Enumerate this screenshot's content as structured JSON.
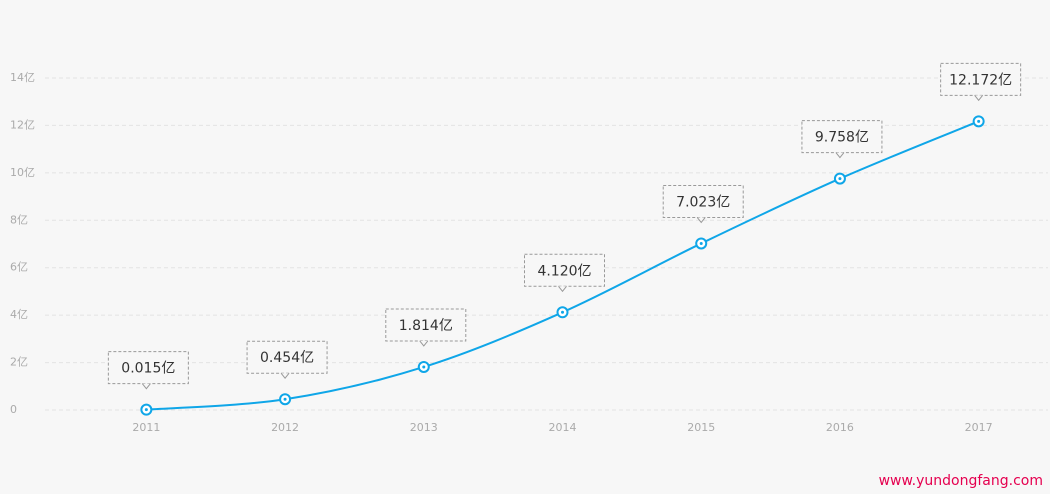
{
  "chart_data": {
    "type": "line",
    "categories": [
      "2011",
      "2012",
      "2013",
      "2014",
      "2015",
      "2016",
      "2017"
    ],
    "series": [
      {
        "name": "line",
        "color": "#0fa6e8",
        "values": [
          0.015,
          0.454,
          1.814,
          4.12,
          7.023,
          9.758,
          12.172
        ],
        "value_labels": [
          "0.015亿",
          "0.454亿",
          "1.814亿",
          "4.120亿",
          "7.023亿",
          "9.758亿",
          "12.172亿"
        ]
      }
    ],
    "ylim": [
      0,
      14
    ],
    "yticks": [
      0,
      {
        "value": 2,
        "label": "2亿"
      },
      {
        "value": 4,
        "label": "4亿"
      },
      {
        "value": 6,
        "label": "6亿"
      },
      {
        "value": 8,
        "label": "8亿"
      },
      {
        "value": 10,
        "label": "10亿"
      },
      {
        "value": 12,
        "label": "12亿"
      },
      {
        "value": 14,
        "label": "14亿"
      }
    ],
    "grid": true
  },
  "watermark": "www.yundongfang.com"
}
